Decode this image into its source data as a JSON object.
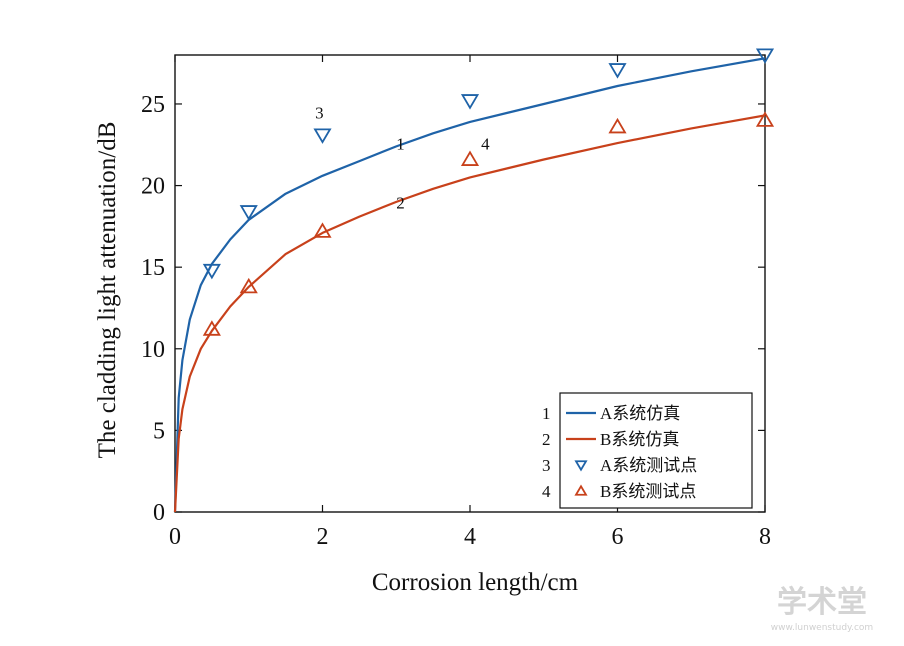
{
  "chart_data": {
    "type": "line",
    "xlabel": "Corrosion length/cm",
    "ylabel": "The cladding light attenuation/dB",
    "xlim": [
      0,
      8
    ],
    "ylim": [
      0,
      28
    ],
    "xticks": [
      0,
      2,
      4,
      6,
      8
    ],
    "yticks": [
      0,
      5,
      10,
      15,
      20,
      25
    ],
    "grid": false,
    "legend_position": "bottom-right",
    "colors": {
      "A": "#1f63a8",
      "B": "#c8411b"
    },
    "series": [
      {
        "name": "A系统仿真",
        "legend_number": "1",
        "kind": "line",
        "color": "#1f63a8",
        "x": [
          0,
          0.05,
          0.1,
          0.2,
          0.35,
          0.5,
          0.75,
          1,
          1.5,
          2,
          2.5,
          3,
          3.5,
          4,
          5,
          6,
          7,
          8
        ],
        "y": [
          0,
          7.0,
          9.3,
          11.8,
          13.9,
          15.2,
          16.7,
          17.9,
          19.5,
          20.6,
          21.5,
          22.4,
          23.2,
          23.9,
          25.0,
          26.1,
          27.0,
          27.8
        ]
      },
      {
        "name": "B系统仿真",
        "legend_number": "2",
        "kind": "line",
        "color": "#c8411b",
        "x": [
          0,
          0.05,
          0.1,
          0.2,
          0.35,
          0.5,
          0.75,
          1,
          1.5,
          2,
          2.5,
          3,
          3.5,
          4,
          5,
          6,
          7,
          8
        ],
        "y": [
          0,
          4.5,
          6.3,
          8.3,
          10.0,
          11.1,
          12.6,
          13.8,
          15.8,
          17.1,
          18.1,
          19.0,
          19.8,
          20.5,
          21.6,
          22.6,
          23.5,
          24.3
        ]
      },
      {
        "name": "A系统测试点",
        "legend_number": "3",
        "kind": "markers",
        "marker": "triangle-down",
        "color": "#1f63a8",
        "x": [
          0.5,
          1,
          2,
          4,
          6,
          8
        ],
        "y": [
          14.8,
          18.4,
          23.1,
          25.2,
          27.1,
          28.0
        ]
      },
      {
        "name": "B系统测试点",
        "legend_number": "4",
        "kind": "markers",
        "marker": "triangle-up",
        "color": "#c8411b",
        "x": [
          0.5,
          1,
          2,
          4,
          6,
          8
        ],
        "y": [
          11.2,
          13.8,
          17.2,
          21.6,
          23.6,
          24.0
        ]
      }
    ],
    "annotations": [
      {
        "text": "1",
        "x": 3.0,
        "y": 22.2
      },
      {
        "text": "2",
        "x": 3.0,
        "y": 18.6
      },
      {
        "text": "3",
        "x": 1.9,
        "y": 24.1
      },
      {
        "text": "4",
        "x": 4.15,
        "y": 22.2
      }
    ]
  },
  "watermark": {
    "text": "学术堂",
    "url": "www.lunwenstudy.com"
  }
}
